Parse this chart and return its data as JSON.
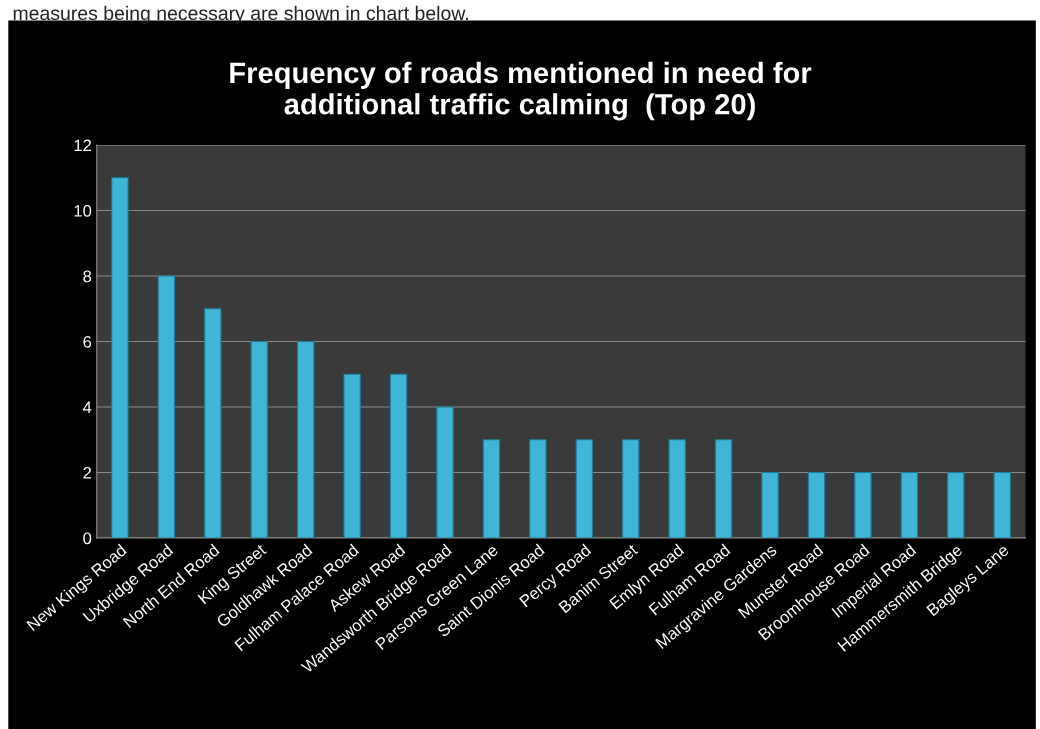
{
  "chart_data": {
    "type": "bar",
    "title": "Frequency of roads mentioned in need for\nadditional traffic calming  (Top 20)",
    "annotations": [
      "measures being necessary are shown in chart below."
    ],
    "categories": [
      "New Kings Road",
      "Uxbridge Road",
      "North End Road",
      "King Street",
      "Goldhawk Road",
      "Fulham Palace Road",
      "Askew Road",
      "Wandsworth Bridge Road",
      "Parsons Green Lane",
      "Saint Dionis Road",
      "Percy Road",
      "Banim Street",
      "Emlyn Road",
      "Fulham Road",
      "Margravine Gardens",
      "Munster Road",
      "Broomhouse Road",
      "Imperial Road",
      "Hammersmith Bridge",
      "Bagleys Lane"
    ],
    "values": [
      11,
      8,
      7,
      6,
      6,
      5,
      5,
      4,
      3,
      3,
      3,
      3,
      3,
      3,
      2,
      2,
      2,
      2,
      2,
      2
    ],
    "color": "#3fb6d6",
    "ylim": [
      0,
      12
    ],
    "yticks": [
      0,
      2,
      4,
      6,
      8,
      10,
      12
    ],
    "grid": "y",
    "legend": false
  }
}
